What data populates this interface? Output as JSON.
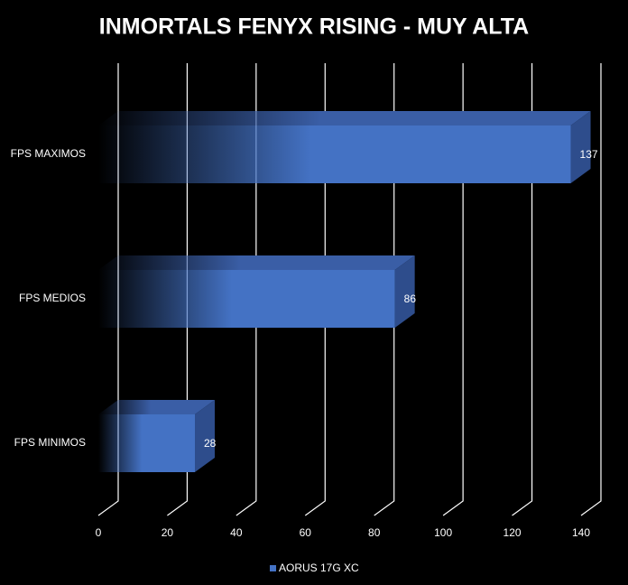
{
  "chart_data": {
    "type": "bar",
    "orientation": "horizontal",
    "title": "INMORTALS FENYX RISING - MUY ALTA",
    "categories": [
      "FPS MAXIMOS",
      "FPS MEDIOS",
      "FPS MINIMOS"
    ],
    "series": [
      {
        "name": "AORUS 17G XC",
        "color": "#4472c4",
        "values": [
          137,
          86,
          28
        ]
      }
    ],
    "xlim": [
      0,
      140
    ],
    "xticks": [
      0,
      20,
      40,
      60,
      80,
      100,
      120,
      140
    ],
    "grid": true
  }
}
